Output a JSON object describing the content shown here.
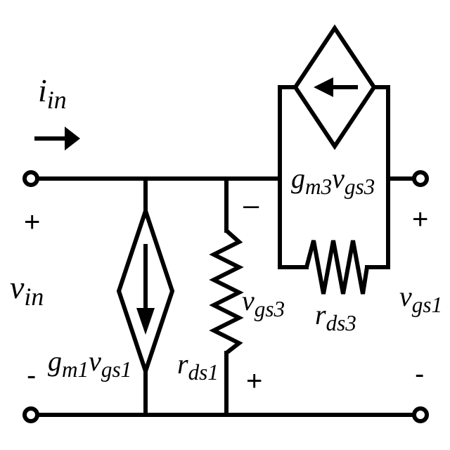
{
  "labels": {
    "iin": {
      "main": "i",
      "sub": "in"
    },
    "vin": {
      "main": "v",
      "sub": "in"
    },
    "gm1": {
      "a": "g",
      "a_sub": "m1",
      "b": "v",
      "b_sub": "gs1"
    },
    "rds1": {
      "main": "r",
      "sub": "ds1"
    },
    "vgs3": {
      "main": "v",
      "sub": "gs3"
    },
    "gm3": {
      "a": "g",
      "a_sub": "m3",
      "b": "v",
      "b_sub": "gs3"
    },
    "rds3": {
      "main": "r",
      "sub": "ds3"
    },
    "vgs1": {
      "main": "v",
      "sub": "gs1"
    }
  },
  "signs": {
    "vin_plus": "+",
    "vin_minus": "-",
    "vgs3_minus": "–",
    "vgs3_plus": "+",
    "vgs1_plus": "+",
    "vgs1_minus": "-"
  }
}
